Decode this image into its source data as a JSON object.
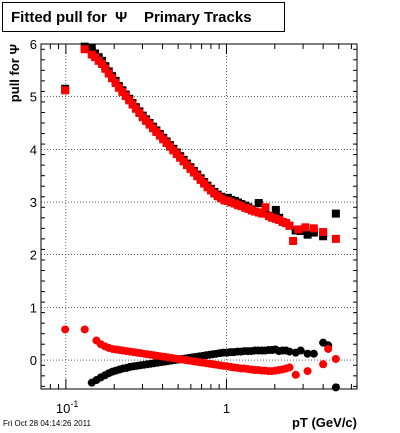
{
  "chart_data": {
    "type": "scatter",
    "title": "Fitted pull for  Ψ    Primary Tracks",
    "xlabel": "pT (GeV/c)",
    "ylabel": "pull for Ψ",
    "xscale": "log",
    "xlim": [
      0.07,
      6.5
    ],
    "ylim": [
      -0.55,
      6.0
    ],
    "x_tick_labels": [
      "10^-1",
      "1"
    ],
    "y_tick_labels": [
      "0",
      "1",
      "2",
      "3",
      "4",
      "5",
      "6"
    ],
    "grid": true,
    "legend": "none",
    "series": [
      {
        "color": "#000000",
        "marker": "square",
        "points": [
          [
            0.099,
            5.15
          ],
          [
            0.131,
            5.95
          ],
          [
            0.145,
            5.92
          ],
          [
            0.152,
            5.82
          ],
          [
            0.16,
            5.75
          ],
          [
            0.168,
            5.68
          ],
          [
            0.176,
            5.58
          ],
          [
            0.185,
            5.48
          ],
          [
            0.194,
            5.39
          ],
          [
            0.204,
            5.3
          ],
          [
            0.214,
            5.2
          ],
          [
            0.225,
            5.12
          ],
          [
            0.236,
            5.04
          ],
          [
            0.248,
            4.96
          ],
          [
            0.26,
            4.88
          ],
          [
            0.273,
            4.8
          ],
          [
            0.287,
            4.72
          ],
          [
            0.301,
            4.64
          ],
          [
            0.316,
            4.57
          ],
          [
            0.332,
            4.5
          ],
          [
            0.349,
            4.43
          ],
          [
            0.366,
            4.36
          ],
          [
            0.385,
            4.29
          ],
          [
            0.404,
            4.22
          ],
          [
            0.424,
            4.15
          ],
          [
            0.445,
            4.08
          ],
          [
            0.467,
            4.01
          ],
          [
            0.491,
            3.94
          ],
          [
            0.515,
            3.87
          ],
          [
            0.541,
            3.8
          ],
          [
            0.568,
            3.73
          ],
          [
            0.597,
            3.66
          ],
          [
            0.627,
            3.59
          ],
          [
            0.658,
            3.52
          ],
          [
            0.691,
            3.45
          ],
          [
            0.726,
            3.38
          ],
          [
            0.762,
            3.31
          ],
          [
            0.8,
            3.25
          ],
          [
            0.84,
            3.19
          ],
          [
            0.882,
            3.14
          ],
          [
            0.926,
            3.1
          ],
          [
            0.972,
            3.06
          ],
          [
            1.02,
            3.08
          ],
          [
            1.07,
            3.04
          ],
          [
            1.13,
            3.02
          ],
          [
            1.18,
            2.99
          ],
          [
            1.24,
            2.96
          ],
          [
            1.31,
            2.93
          ],
          [
            1.37,
            2.9
          ],
          [
            1.44,
            2.86
          ],
          [
            1.51,
            2.82
          ],
          [
            1.59,
            2.98
          ],
          [
            1.67,
            2.8
          ],
          [
            1.75,
            2.78
          ],
          [
            1.84,
            2.74
          ],
          [
            1.93,
            2.72
          ],
          [
            2.03,
            2.85
          ],
          [
            2.13,
            2.7
          ],
          [
            2.24,
            2.62
          ],
          [
            2.35,
            2.6
          ],
          [
            2.47,
            2.55
          ],
          [
            2.7,
            2.46
          ],
          [
            2.9,
            2.45
          ],
          [
            3.2,
            2.38
          ],
          [
            3.5,
            2.42
          ],
          [
            4.0,
            2.35
          ],
          [
            4.8,
            2.78
          ]
        ]
      },
      {
        "color": "#ff0000",
        "marker": "square",
        "points": [
          [
            0.099,
            5.12
          ],
          [
            0.131,
            5.9
          ],
          [
            0.145,
            5.8
          ],
          [
            0.152,
            5.75
          ],
          [
            0.16,
            5.68
          ],
          [
            0.168,
            5.62
          ],
          [
            0.176,
            5.53
          ],
          [
            0.185,
            5.44
          ],
          [
            0.194,
            5.35
          ],
          [
            0.204,
            5.26
          ],
          [
            0.214,
            5.17
          ],
          [
            0.225,
            5.09
          ],
          [
            0.236,
            5.01
          ],
          [
            0.248,
            4.93
          ],
          [
            0.26,
            4.85
          ],
          [
            0.273,
            4.77
          ],
          [
            0.287,
            4.69
          ],
          [
            0.301,
            4.61
          ],
          [
            0.316,
            4.54
          ],
          [
            0.332,
            4.47
          ],
          [
            0.349,
            4.4
          ],
          [
            0.366,
            4.33
          ],
          [
            0.385,
            4.26
          ],
          [
            0.404,
            4.19
          ],
          [
            0.424,
            4.12
          ],
          [
            0.445,
            4.05
          ],
          [
            0.467,
            3.98
          ],
          [
            0.491,
            3.91
          ],
          [
            0.515,
            3.84
          ],
          [
            0.541,
            3.77
          ],
          [
            0.568,
            3.7
          ],
          [
            0.597,
            3.63
          ],
          [
            0.627,
            3.56
          ],
          [
            0.658,
            3.49
          ],
          [
            0.691,
            3.42
          ],
          [
            0.726,
            3.35
          ],
          [
            0.762,
            3.28
          ],
          [
            0.8,
            3.22
          ],
          [
            0.84,
            3.16
          ],
          [
            0.882,
            3.11
          ],
          [
            0.926,
            3.07
          ],
          [
            0.972,
            3.03
          ],
          [
            1.02,
            3.02
          ],
          [
            1.07,
            2.99
          ],
          [
            1.13,
            2.97
          ],
          [
            1.18,
            2.94
          ],
          [
            1.24,
            2.92
          ],
          [
            1.31,
            2.89
          ],
          [
            1.37,
            2.87
          ],
          [
            1.44,
            2.84
          ],
          [
            1.51,
            2.82
          ],
          [
            1.59,
            2.8
          ],
          [
            1.67,
            2.78
          ],
          [
            1.75,
            2.9
          ],
          [
            1.84,
            2.73
          ],
          [
            1.93,
            2.7
          ],
          [
            2.03,
            2.68
          ],
          [
            2.13,
            2.66
          ],
          [
            2.24,
            2.62
          ],
          [
            2.35,
            2.6
          ],
          [
            2.47,
            2.55
          ],
          [
            2.6,
            2.26
          ],
          [
            2.8,
            2.48
          ],
          [
            3.1,
            2.52
          ],
          [
            3.5,
            2.5
          ],
          [
            4.0,
            2.43
          ],
          [
            4.8,
            2.3
          ]
        ]
      },
      {
        "color": "#000000",
        "marker": "circle",
        "points": [
          [
            0.145,
            -0.43
          ],
          [
            0.155,
            -0.38
          ],
          [
            0.165,
            -0.33
          ],
          [
            0.175,
            -0.29
          ],
          [
            0.185,
            -0.25
          ],
          [
            0.195,
            -0.22
          ],
          [
            0.205,
            -0.2
          ],
          [
            0.216,
            -0.18
          ],
          [
            0.227,
            -0.16
          ],
          [
            0.239,
            -0.15
          ],
          [
            0.251,
            -0.13
          ],
          [
            0.264,
            -0.12
          ],
          [
            0.277,
            -0.11
          ],
          [
            0.291,
            -0.1
          ],
          [
            0.306,
            -0.09
          ],
          [
            0.322,
            -0.08
          ],
          [
            0.338,
            -0.07
          ],
          [
            0.355,
            -0.06
          ],
          [
            0.373,
            -0.05
          ],
          [
            0.392,
            -0.04
          ],
          [
            0.412,
            -0.03
          ],
          [
            0.433,
            -0.02
          ],
          [
            0.455,
            -0.01
          ],
          [
            0.478,
            0.0
          ],
          [
            0.502,
            0.01
          ],
          [
            0.528,
            0.02
          ],
          [
            0.555,
            0.03
          ],
          [
            0.583,
            0.04
          ],
          [
            0.613,
            0.05
          ],
          [
            0.644,
            0.06
          ],
          [
            0.677,
            0.07
          ],
          [
            0.711,
            0.08
          ],
          [
            0.747,
            0.09
          ],
          [
            0.785,
            0.1
          ],
          [
            0.825,
            0.11
          ],
          [
            0.867,
            0.12
          ],
          [
            0.911,
            0.13
          ],
          [
            0.957,
            0.14
          ],
          [
            1.01,
            0.14
          ],
          [
            1.06,
            0.15
          ],
          [
            1.11,
            0.15
          ],
          [
            1.17,
            0.16
          ],
          [
            1.23,
            0.16
          ],
          [
            1.29,
            0.17
          ],
          [
            1.36,
            0.17
          ],
          [
            1.43,
            0.17
          ],
          [
            1.5,
            0.18
          ],
          [
            1.58,
            0.18
          ],
          [
            1.66,
            0.18
          ],
          [
            1.74,
            0.18
          ],
          [
            1.83,
            0.19
          ],
          [
            1.92,
            0.19
          ],
          [
            2.02,
            0.2
          ],
          [
            2.12,
            0.17
          ],
          [
            2.23,
            0.18
          ],
          [
            2.35,
            0.18
          ],
          [
            2.47,
            0.16
          ],
          [
            2.7,
            0.14
          ],
          [
            2.9,
            0.18
          ],
          [
            3.2,
            0.12
          ],
          [
            3.5,
            0.12
          ],
          [
            4.0,
            0.33
          ],
          [
            4.3,
            0.28
          ],
          [
            4.8,
            -0.52
          ]
        ]
      },
      {
        "color": "#ff0000",
        "marker": "circle",
        "points": [
          [
            0.099,
            0.58
          ],
          [
            0.131,
            0.58
          ],
          [
            0.155,
            0.37
          ],
          [
            0.165,
            0.3
          ],
          [
            0.175,
            0.26
          ],
          [
            0.185,
            0.23
          ],
          [
            0.195,
            0.21
          ],
          [
            0.205,
            0.2
          ],
          [
            0.216,
            0.19
          ],
          [
            0.227,
            0.18
          ],
          [
            0.239,
            0.17
          ],
          [
            0.251,
            0.16
          ],
          [
            0.264,
            0.15
          ],
          [
            0.277,
            0.14
          ],
          [
            0.291,
            0.13
          ],
          [
            0.306,
            0.12
          ],
          [
            0.322,
            0.11
          ],
          [
            0.338,
            0.1
          ],
          [
            0.355,
            0.09
          ],
          [
            0.373,
            0.08
          ],
          [
            0.392,
            0.07
          ],
          [
            0.412,
            0.06
          ],
          [
            0.433,
            0.05
          ],
          [
            0.455,
            0.04
          ],
          [
            0.478,
            0.03
          ],
          [
            0.502,
            0.02
          ],
          [
            0.528,
            0.01
          ],
          [
            0.555,
            0.0
          ],
          [
            0.583,
            -0.01
          ],
          [
            0.613,
            -0.02
          ],
          [
            0.644,
            -0.03
          ],
          [
            0.677,
            -0.04
          ],
          [
            0.711,
            -0.05
          ],
          [
            0.747,
            -0.06
          ],
          [
            0.785,
            -0.07
          ],
          [
            0.825,
            -0.08
          ],
          [
            0.867,
            -0.09
          ],
          [
            0.911,
            -0.1
          ],
          [
            0.957,
            -0.11
          ],
          [
            1.01,
            -0.12
          ],
          [
            1.06,
            -0.13
          ],
          [
            1.11,
            -0.14
          ],
          [
            1.17,
            -0.15
          ],
          [
            1.23,
            -0.16
          ],
          [
            1.29,
            -0.16
          ],
          [
            1.36,
            -0.17
          ],
          [
            1.43,
            -0.18
          ],
          [
            1.5,
            -0.19
          ],
          [
            1.58,
            -0.19
          ],
          [
            1.66,
            -0.2
          ],
          [
            1.74,
            -0.2
          ],
          [
            1.83,
            -0.21
          ],
          [
            1.92,
            -0.21
          ],
          [
            2.02,
            -0.2
          ],
          [
            2.12,
            -0.19
          ],
          [
            2.23,
            -0.18
          ],
          [
            2.35,
            -0.16
          ],
          [
            2.47,
            -0.14
          ],
          [
            2.7,
            -0.28
          ],
          [
            3.2,
            -0.21
          ],
          [
            4.0,
            -0.08
          ],
          [
            4.3,
            0.21
          ],
          [
            4.8,
            0.02
          ]
        ]
      }
    ]
  },
  "timestamp": "Fri Oct 28 04:14:26 2011"
}
